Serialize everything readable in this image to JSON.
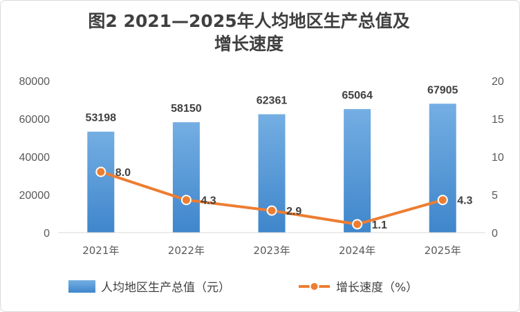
{
  "title_line1": "图2  2021—2025年人均地区生产总值及",
  "title_line2": "增长速度",
  "chart_data": {
    "type": "bar",
    "title": "图2  2021—2025年人均地区生产总值及增长速度",
    "categories": [
      "2021年",
      "2022年",
      "2023年",
      "2024年",
      "2025年"
    ],
    "series": [
      {
        "name": "人均地区生产总值（元）",
        "type": "bar",
        "axis": "left",
        "values": [
          53198,
          58150,
          62361,
          65064,
          67905
        ],
        "color": "#5b9bd5"
      },
      {
        "name": "增长速度（%）",
        "type": "line",
        "axis": "right",
        "values": [
          8.0,
          4.3,
          2.9,
          1.1,
          4.3
        ],
        "color": "#ed7d31"
      }
    ],
    "bar_labels": [
      "53198",
      "58150",
      "62361",
      "65064",
      "67905"
    ],
    "line_labels": [
      "8.0",
      "4.3",
      "2.9",
      "1.1",
      "4.3"
    ],
    "y_left": {
      "min": 0,
      "max": 80000,
      "ticks": [
        0,
        20000,
        40000,
        60000,
        80000
      ],
      "tick_labels": [
        "0",
        "20000",
        "40000",
        "60000",
        "80000"
      ]
    },
    "y_right": {
      "min": 0,
      "max": 20,
      "ticks": [
        0,
        5,
        10,
        15,
        20
      ],
      "tick_labels": [
        "0",
        "5",
        "10",
        "15",
        "20"
      ]
    },
    "grid": false,
    "legend_position": "bottom"
  }
}
